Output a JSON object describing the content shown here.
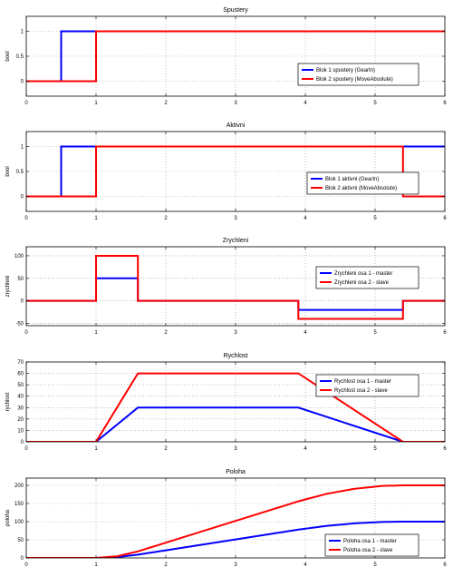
{
  "chart_data": [
    {
      "type": "line",
      "title": "Spustery",
      "xlabel": "",
      "ylabel": "bool",
      "xlim": [
        0,
        6
      ],
      "ylim": [
        -0.3,
        1.3
      ],
      "xticks": [
        0,
        1,
        2,
        3,
        4,
        5,
        6
      ],
      "xtick_labels": [
        "0",
        "1",
        "2",
        "3",
        "4",
        "5",
        "6"
      ],
      "yticks": [
        0,
        0.5,
        1
      ],
      "ytick_labels": [
        "0",
        "0.5",
        "1"
      ],
      "grid": true,
      "legend_position": "right",
      "series": [
        {
          "name": "Blok 1 spustery (GearIn)",
          "color": "#0000ff",
          "x": [
            0,
            0.5,
            0.5,
            6
          ],
          "y": [
            0,
            0,
            1,
            1
          ]
        },
        {
          "name": "Blok 2 spustery (MoveAbsolute)",
          "color": "#ff0000",
          "x": [
            0,
            1,
            1,
            6
          ],
          "y": [
            0,
            0,
            1,
            1
          ]
        }
      ]
    },
    {
      "type": "line",
      "title": "Aktivni",
      "xlabel": "",
      "ylabel": "bool",
      "xlim": [
        0,
        6
      ],
      "ylim": [
        -0.3,
        1.3
      ],
      "xticks": [
        0,
        1,
        2,
        3,
        4,
        5,
        6
      ],
      "xtick_labels": [
        "0",
        "1",
        "2",
        "3",
        "4",
        "5",
        "6"
      ],
      "yticks": [
        0,
        0.5,
        1
      ],
      "ytick_labels": [
        "0",
        "0.5",
        "1"
      ],
      "grid": true,
      "legend_position": "bottom-right",
      "series": [
        {
          "name": "Blok 1 aktivni (GearIn)",
          "color": "#0000ff",
          "x": [
            0,
            0.5,
            0.5,
            6
          ],
          "y": [
            0,
            0,
            1,
            1
          ]
        },
        {
          "name": "Blok 2 aktivni (MoveAbsolute)",
          "color": "#ff0000",
          "x": [
            0,
            1,
            1,
            5.4,
            5.4,
            6
          ],
          "y": [
            0,
            0,
            1,
            1,
            0,
            0
          ]
        }
      ]
    },
    {
      "type": "line",
      "title": "Zrychleni",
      "xlabel": "",
      "ylabel": "zrychleni",
      "xlim": [
        0,
        6
      ],
      "ylim": [
        -55,
        120
      ],
      "xticks": [
        0,
        1,
        2,
        3,
        4,
        5,
        6
      ],
      "xtick_labels": [
        "0",
        "1",
        "2",
        "3",
        "4",
        "5",
        "6"
      ],
      "yticks": [
        -50,
        0,
        50,
        100
      ],
      "ytick_labels": [
        "-50",
        "0",
        "50",
        "100"
      ],
      "grid": true,
      "legend_position": "right",
      "series": [
        {
          "name": "Zrychleni osa 1 - master",
          "color": "#0000ff",
          "x": [
            0,
            1,
            1,
            1.6,
            1.6,
            3.9,
            3.9,
            5.4,
            5.4,
            6
          ],
          "y": [
            0,
            0,
            50,
            50,
            0,
            0,
            -20,
            -20,
            0,
            0
          ]
        },
        {
          "name": "Zrychleni osa 2 - slave",
          "color": "#ff0000",
          "x": [
            0,
            1,
            1,
            1.6,
            1.6,
            3.9,
            3.9,
            5.4,
            5.4,
            6
          ],
          "y": [
            0,
            0,
            100,
            100,
            0,
            0,
            -40,
            -40,
            0,
            0
          ]
        }
      ]
    },
    {
      "type": "line",
      "title": "Rychlost",
      "xlabel": "",
      "ylabel": "rychlost",
      "xlim": [
        0,
        6
      ],
      "ylim": [
        0,
        70
      ],
      "xticks": [
        0,
        1,
        2,
        3,
        4,
        5,
        6
      ],
      "xtick_labels": [
        "0",
        "1",
        "2",
        "3",
        "4",
        "5",
        "6"
      ],
      "yticks": [
        0,
        10,
        20,
        30,
        40,
        50,
        60,
        70
      ],
      "ytick_labels": [
        "0",
        "10",
        "20",
        "30",
        "40",
        "50",
        "60",
        "70"
      ],
      "grid": true,
      "legend_position": "top-right",
      "series": [
        {
          "name": "Rychlost osa 1 - master",
          "color": "#0000ff",
          "x": [
            0,
            1,
            1.6,
            3.9,
            5.4,
            6
          ],
          "y": [
            0,
            0,
            30,
            30,
            0,
            0
          ]
        },
        {
          "name": "Rychlost osa 2 - slave",
          "color": "#ff0000",
          "x": [
            0,
            1,
            1.6,
            3.9,
            5.4,
            6
          ],
          "y": [
            0,
            0,
            60,
            60,
            0,
            0
          ]
        }
      ]
    },
    {
      "type": "line",
      "title": "Poloha",
      "xlabel": "",
      "ylabel": "poloha",
      "xlim": [
        0,
        6
      ],
      "ylim": [
        0,
        220
      ],
      "xticks": [
        0,
        1,
        2,
        3,
        4,
        5,
        6
      ],
      "xtick_labels": [
        "0",
        "1",
        "2",
        "3",
        "4",
        "5",
        "6"
      ],
      "yticks": [
        0,
        50,
        100,
        150,
        200
      ],
      "ytick_labels": [
        "0",
        "50",
        "100",
        "150",
        "200"
      ],
      "grid": true,
      "legend_position": "bottom-right",
      "series": [
        {
          "name": "Poloha osa 1 - master",
          "color": "#0000ff",
          "x": [
            0,
            1,
            1.3,
            1.6,
            2,
            2.5,
            3,
            3.5,
            3.9,
            4.3,
            4.7,
            5.1,
            5.4,
            6
          ],
          "y": [
            0,
            0,
            2.25,
            9,
            21,
            36,
            51,
            66,
            78,
            88.2,
            95.2,
            99.2,
            100,
            100
          ]
        },
        {
          "name": "Poloha osa 2 - slave",
          "color": "#ff0000",
          "x": [
            0,
            1,
            1.3,
            1.6,
            2,
            2.5,
            3,
            3.5,
            3.9,
            4.3,
            4.7,
            5.1,
            5.4,
            6
          ],
          "y": [
            0,
            0,
            4.5,
            18,
            42,
            72,
            102,
            132,
            156,
            176.4,
            190.4,
            198.4,
            200,
            200
          ]
        }
      ]
    }
  ]
}
